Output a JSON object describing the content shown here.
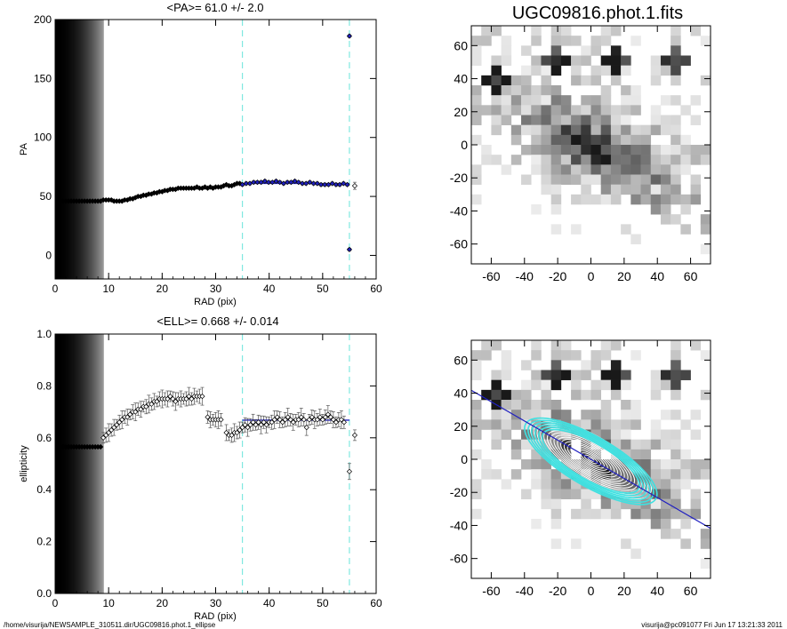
{
  "colors": {
    "fit": "#2020c0",
    "cut": "#7fe8e0",
    "fill": "#000000",
    "contour_white": "#ffffff",
    "contour_cyan": "#40e0e0"
  },
  "pa_panel": {
    "title": "<PA>=  61.0 +/-   2.0",
    "xlabel": "RAD (pix)",
    "ylabel": "PA",
    "xticks": [
      "0",
      "10",
      "20",
      "30",
      "40",
      "50",
      "60"
    ],
    "yticks": [
      "0",
      "50",
      "100",
      "150",
      "200"
    ]
  },
  "ell_panel": {
    "title": "<ELL>= 0.668 +/-  0.014",
    "xlabel": "RAD (pix)",
    "ylabel": "ellipticity",
    "xticks": [
      "0",
      "10",
      "20",
      "30",
      "40",
      "50",
      "60"
    ],
    "yticks": [
      "0.0",
      "0.2",
      "0.4",
      "0.6",
      "0.8",
      "1.0"
    ]
  },
  "image_top": {
    "title": "UGC09816.phot.1.fits",
    "xticks": [
      "-60",
      "-40",
      "-20",
      "0",
      "20",
      "40",
      "60"
    ],
    "yticks": [
      "60",
      "40",
      "20",
      "0",
      "-20",
      "-40",
      "-60"
    ]
  },
  "image_bottom": {
    "xticks": [
      "-60",
      "-40",
      "-20",
      "0",
      "20",
      "40",
      "60"
    ],
    "yticks": [
      "60",
      "40",
      "20",
      "0",
      "-20",
      "-40",
      "-60"
    ]
  },
  "footer": {
    "left": "/home/visurija/NEWSAMPLE_310511.dir/UGC09816.phot.1_ellipse",
    "right": "visurija@pc091077  Fri Jun 17 13:21:33 2011"
  },
  "chart_data": [
    {
      "type": "scatter",
      "title": "<PA>=  61.0 +/-   2.0",
      "xlabel": "RAD (pix)",
      "ylabel": "PA",
      "xlim": [
        0,
        60
      ],
      "ylim": [
        -20,
        200
      ],
      "shaded_region": {
        "x": [
          0,
          9
        ]
      },
      "cut_lines_x": [
        35,
        55
      ],
      "fit": {
        "x": [
          35,
          55
        ],
        "y": 61.0
      },
      "series": [
        {
          "x": [
            0.5,
            1,
            1.5,
            2,
            2.5,
            3,
            3.5,
            4,
            4.5,
            5,
            5.5,
            6,
            6.5,
            7,
            7.5,
            8,
            8.5,
            9,
            9.5,
            10,
            10.5,
            11,
            11.5,
            12,
            12.5,
            13,
            13.5,
            14,
            14.5,
            15,
            15.5,
            16,
            16.5,
            17,
            17.5,
            18,
            18.5,
            19,
            19.5,
            20,
            20.5,
            21,
            21.5,
            22,
            22.5,
            23,
            23.5,
            24,
            24.5,
            25,
            25.5,
            26,
            26.5,
            27,
            27.5,
            28,
            28.5,
            29,
            29.5,
            30,
            30.5,
            31,
            31.5,
            32,
            32.5,
            33,
            33.5,
            34,
            34.5
          ],
          "y": [
            46,
            46,
            46,
            46,
            46,
            46,
            46,
            46,
            46,
            46,
            46,
            46,
            46,
            46,
            46,
            46,
            46,
            47,
            47,
            47,
            47,
            46,
            46,
            46,
            46,
            47,
            47,
            48,
            48,
            49,
            50,
            50,
            51,
            51,
            52,
            52,
            53,
            53,
            54,
            54,
            55,
            55,
            56,
            56,
            56,
            57,
            57,
            57,
            57,
            57,
            57,
            57,
            58,
            57,
            57,
            58,
            57,
            58,
            57,
            58,
            58,
            58,
            59,
            60,
            59,
            59,
            60,
            61,
            61
          ]
        },
        {
          "x": [
            35,
            35.7,
            36.4,
            37.1,
            37.8,
            38.5,
            39.2,
            39.9,
            40.6,
            41.3,
            42,
            42.7,
            43.4,
            44.1,
            44.8,
            45.5,
            46.2,
            46.9,
            47.6,
            48.3,
            49,
            49.7,
            50.4,
            51.1,
            51.8,
            52.5,
            53.2,
            53.9,
            54.6,
            55,
            55
          ],
          "y": [
            60,
            61,
            61,
            62,
            62,
            62,
            63,
            62,
            62,
            63,
            62,
            61,
            62,
            62,
            63,
            62,
            61,
            61,
            62,
            61,
            61,
            60,
            60,
            60,
            61,
            60,
            60,
            61,
            60,
            186,
            5
          ]
        },
        {
          "x": [
            56
          ],
          "y": [
            59
          ]
        }
      ]
    },
    {
      "type": "scatter",
      "title": "<ELL>= 0.668 +/-  0.014",
      "xlabel": "RAD (pix)",
      "ylabel": "ellipticity",
      "xlim": [
        0,
        60
      ],
      "ylim": [
        0,
        1
      ],
      "shaded_region": {
        "x": [
          0,
          9
        ]
      },
      "cut_lines_x": [
        35,
        55
      ],
      "fit": {
        "x": [
          35,
          55
        ],
        "y": 0.668
      },
      "series": [
        {
          "x": [
            0.5,
            1,
            1.5,
            2,
            2.5,
            3,
            3.5,
            4,
            4.5,
            5,
            5.5,
            6,
            6.5,
            7,
            7.5,
            8,
            8.5
          ],
          "y": [
            0.565,
            0.565,
            0.565,
            0.565,
            0.565,
            0.565,
            0.565,
            0.565,
            0.565,
            0.565,
            0.565,
            0.565,
            0.565,
            0.565,
            0.565,
            0.565,
            0.565
          ]
        },
        {
          "x": [
            9,
            9.5,
            10,
            10.5,
            11,
            11.5,
            12,
            12.5,
            13,
            13.5,
            14,
            14.5,
            15,
            15.5,
            16,
            16.5,
            17,
            17.5,
            18,
            18.5,
            19,
            19.5,
            20,
            20.5,
            21,
            21.5,
            22,
            22.5,
            23,
            23.5,
            24,
            24.5,
            25,
            25.5,
            26,
            26.5,
            27,
            27.5,
            28.5,
            29,
            29.5,
            30,
            30.5,
            31,
            32,
            32.5,
            33,
            33.5,
            34,
            34.5,
            35,
            35.5,
            36,
            36.5,
            37,
            37.5,
            38,
            38.5,
            39,
            39.5,
            40,
            40.5,
            41,
            41.5,
            42,
            42.5,
            43,
            43.5,
            44,
            44.5,
            45,
            45.5,
            46,
            46.5,
            47,
            47.5,
            48,
            48.5,
            49,
            49.5,
            50,
            50.5,
            51,
            51.5,
            52,
            52.5,
            53,
            53.5,
            54,
            55,
            56
          ],
          "y": [
            0.6,
            0.61,
            0.62,
            0.63,
            0.64,
            0.65,
            0.66,
            0.67,
            0.68,
            0.68,
            0.69,
            0.7,
            0.7,
            0.71,
            0.71,
            0.72,
            0.72,
            0.73,
            0.73,
            0.74,
            0.74,
            0.75,
            0.75,
            0.75,
            0.75,
            0.76,
            0.75,
            0.74,
            0.75,
            0.75,
            0.75,
            0.75,
            0.76,
            0.75,
            0.76,
            0.76,
            0.76,
            0.76,
            0.68,
            0.67,
            0.67,
            0.67,
            0.67,
            0.67,
            0.62,
            0.61,
            0.61,
            0.62,
            0.62,
            0.63,
            0.64,
            0.65,
            0.64,
            0.65,
            0.66,
            0.65,
            0.66,
            0.65,
            0.66,
            0.65,
            0.66,
            0.66,
            0.67,
            0.68,
            0.67,
            0.66,
            0.67,
            0.68,
            0.67,
            0.66,
            0.67,
            0.67,
            0.68,
            0.67,
            0.64,
            0.67,
            0.68,
            0.67,
            0.67,
            0.68,
            0.67,
            0.68,
            0.69,
            0.68,
            0.67,
            0.66,
            0.67,
            0.67,
            0.66,
            0.47,
            0.61
          ]
        }
      ]
    }
  ]
}
